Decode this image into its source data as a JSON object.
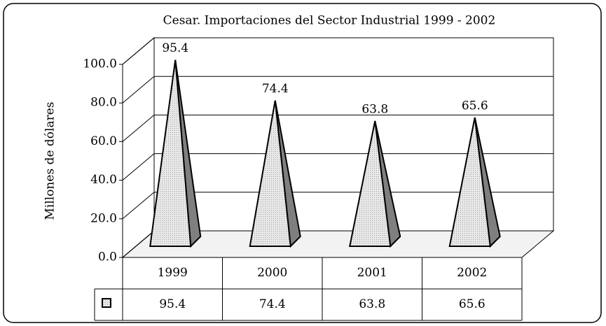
{
  "chart_data": {
    "type": "bar",
    "title": "Cesar. Importaciones del Sector Industrial 1999 - 2002",
    "y_label": "Millones de dólares",
    "categories": [
      "1999",
      "2000",
      "2001",
      "2002"
    ],
    "values": [
      95.4,
      74.4,
      63.8,
      65.6
    ],
    "color": "#dcdcdc",
    "side_color": "#7f7f7f",
    "ylim": [
      0,
      100
    ],
    "yticks": [
      {
        "value": 0,
        "label": "0.0"
      },
      {
        "value": 20,
        "label": "20.0"
      },
      {
        "value": 40,
        "label": "40.0"
      },
      {
        "value": 60,
        "label": "60.0"
      },
      {
        "value": 80,
        "label": "80.0"
      },
      {
        "value": 100,
        "label": "100.0"
      }
    ],
    "grid": true
  }
}
